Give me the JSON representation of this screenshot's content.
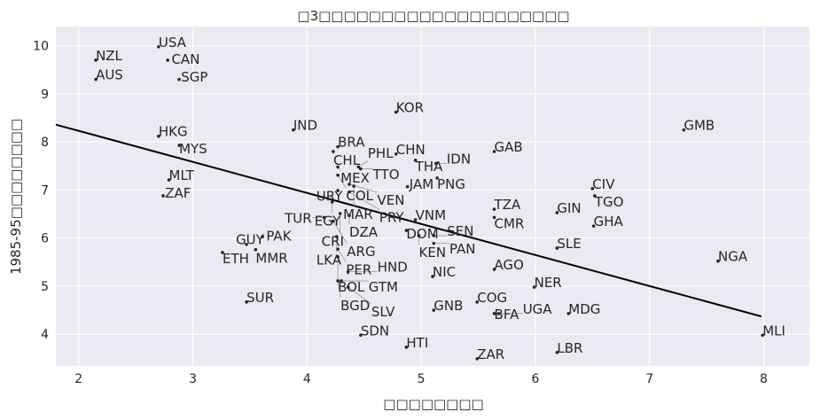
{
  "chart_data": {
    "type": "scatter",
    "title": "□3□□□□□□□□□□□□□□□□□□□□",
    "xlabel": "□□□□□□□□",
    "ylabel": "1985-95□□□□□□□□",
    "xlim": [
      1.8,
      8.4
    ],
    "ylim": [
      3.34,
      10.4
    ],
    "xticks": [
      2,
      3,
      4,
      5,
      6,
      7,
      8
    ],
    "yticks": [
      4,
      5,
      6,
      7,
      8,
      9,
      10
    ],
    "grid": true,
    "background": "#eaeaf2",
    "fit_line": {
      "x": [
        1.8,
        7.98
      ],
      "y": [
        8.36,
        4.37
      ],
      "color": "#000000"
    },
    "points": [
      {
        "label": "USA",
        "x": 2.7,
        "y": 9.98
      },
      {
        "label": "NZL",
        "x": 2.15,
        "y": 9.7
      },
      {
        "label": "CAN",
        "x": 2.78,
        "y": 9.7
      },
      {
        "label": "AUS",
        "x": 2.15,
        "y": 9.3
      },
      {
        "label": "SGP",
        "x": 2.88,
        "y": 9.3
      },
      {
        "label": "KOR",
        "x": 4.78,
        "y": 8.62
      },
      {
        "label": "IND",
        "x": 3.88,
        "y": 8.25
      },
      {
        "label": "GMB",
        "x": 7.3,
        "y": 8.25
      },
      {
        "label": "HKG",
        "x": 2.7,
        "y": 8.12
      },
      {
        "label": "MYS",
        "x": 2.88,
        "y": 7.93
      },
      {
        "label": "BRA",
        "x": 4.27,
        "y": 7.9
      },
      {
        "label": "CHL",
        "x": 4.23,
        "y": 7.8
      },
      {
        "label": "CHN",
        "x": 4.78,
        "y": 7.75
      },
      {
        "label": "GAB",
        "x": 5.64,
        "y": 7.8
      },
      {
        "label": "THA",
        "x": 4.95,
        "y": 7.62
      },
      {
        "label": "IDN",
        "x": 5.13,
        "y": 7.55
      },
      {
        "label": "MEX",
        "x": 4.27,
        "y": 7.48
      },
      {
        "label": "PHL",
        "x": 4.45,
        "y": 7.48
      },
      {
        "label": "TTO",
        "x": 4.47,
        "y": 7.44
      },
      {
        "label": "COL",
        "x": 4.27,
        "y": 7.31
      },
      {
        "label": "PNG",
        "x": 5.14,
        "y": 7.25
      },
      {
        "label": "MLT",
        "x": 2.79,
        "y": 7.21
      },
      {
        "label": "VEN",
        "x": 4.37,
        "y": 7.12
      },
      {
        "label": "MAR",
        "x": 4.41,
        "y": 7.08
      },
      {
        "label": "JAM",
        "x": 4.88,
        "y": 7.07
      },
      {
        "label": "URY",
        "x": 4.27,
        "y": 6.99
      },
      {
        "label": "PRY",
        "x": 4.37,
        "y": 6.96
      },
      {
        "label": "CIV",
        "x": 6.5,
        "y": 7.03
      },
      {
        "label": "TGO",
        "x": 6.52,
        "y": 6.88
      },
      {
        "label": "ZAF",
        "x": 2.74,
        "y": 6.88
      },
      {
        "label": "EGY",
        "x": 4.22,
        "y": 6.75
      },
      {
        "label": "TZA",
        "x": 5.64,
        "y": 6.6
      },
      {
        "label": "GIN",
        "x": 6.19,
        "y": 6.53
      },
      {
        "label": "DZA",
        "x": 4.37,
        "y": 6.47
      },
      {
        "label": "CRI",
        "x": 4.29,
        "y": 6.51
      },
      {
        "label": "TUR",
        "x": 4.15,
        "y": 6.43
      },
      {
        "label": "CMR",
        "x": 5.64,
        "y": 6.43
      },
      {
        "label": "ARG",
        "x": 4.23,
        "y": 6.35
      },
      {
        "label": "VNM",
        "x": 4.95,
        "y": 6.38
      },
      {
        "label": "GHA",
        "x": 6.51,
        "y": 6.25
      },
      {
        "label": "DOM",
        "x": 4.87,
        "y": 6.16
      },
      {
        "label": "KEN",
        "x": 4.98,
        "y": 6.05
      },
      {
        "label": "SEN",
        "x": 5.11,
        "y": 6.05
      },
      {
        "label": "LKA",
        "x": 4.26,
        "y": 6.03
      },
      {
        "label": "PAK",
        "x": 3.61,
        "y": 6.03
      },
      {
        "label": "PAN",
        "x": 5.11,
        "y": 5.89
      },
      {
        "label": "GUY",
        "x": 3.47,
        "y": 5.87
      },
      {
        "label": "MMR",
        "x": 3.55,
        "y": 5.76
      },
      {
        "label": "SLE",
        "x": 6.19,
        "y": 5.79
      },
      {
        "label": "ETH",
        "x": 3.26,
        "y": 5.7
      },
      {
        "label": "PER",
        "x": 4.27,
        "y": 5.77
      },
      {
        "label": "BOL",
        "x": 4.27,
        "y": 5.61
      },
      {
        "label": "NGA",
        "x": 7.6,
        "y": 5.52
      },
      {
        "label": "AGO",
        "x": 5.64,
        "y": 5.35
      },
      {
        "label": "HND",
        "x": 4.36,
        "y": 5.3
      },
      {
        "label": "NIC",
        "x": 5.1,
        "y": 5.2
      },
      {
        "label": "BGD",
        "x": 4.27,
        "y": 5.11
      },
      {
        "label": "GTM",
        "x": 4.3,
        "y": 5.11
      },
      {
        "label": "SLV",
        "x": 4.36,
        "y": 4.98
      },
      {
        "label": "NER",
        "x": 5.99,
        "y": 4.98
      },
      {
        "label": "SUR",
        "x": 3.47,
        "y": 4.67
      },
      {
        "label": "COG",
        "x": 5.49,
        "y": 4.67
      },
      {
        "label": "GNB",
        "x": 5.11,
        "y": 4.5
      },
      {
        "label": "BFA",
        "x": 5.64,
        "y": 4.43
      },
      {
        "label": "UGA",
        "x": 5.68,
        "y": 4.43
      },
      {
        "label": "MDG",
        "x": 6.29,
        "y": 4.43
      },
      {
        "label": "SDN",
        "x": 4.47,
        "y": 3.98
      },
      {
        "label": "MLI",
        "x": 7.99,
        "y": 3.98
      },
      {
        "label": "HTI",
        "x": 4.87,
        "y": 3.73
      },
      {
        "label": "LBR",
        "x": 6.19,
        "y": 3.62
      },
      {
        "label": "ZAR",
        "x": 5.49,
        "y": 3.49
      }
    ]
  }
}
